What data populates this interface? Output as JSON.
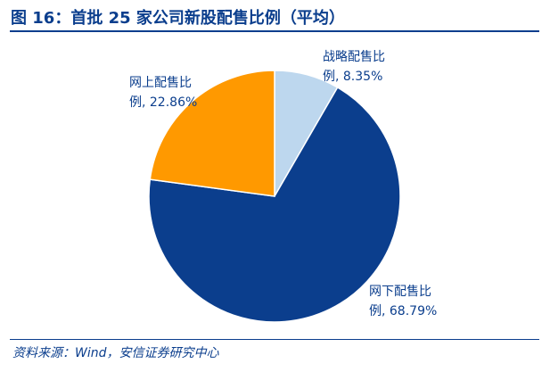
{
  "header": {
    "title": "图 16：首批 25 家公司新股配售比例（平均）"
  },
  "footer": {
    "source": "资料来源：Wind，安信证券研究中心"
  },
  "colors": {
    "title": "#0B3E8D",
    "slice_strategic": "#BDD7EE",
    "slice_offline": "#0B3E8D",
    "slice_online": "#FF9900",
    "label": "#0B3E8D"
  },
  "chart_data": {
    "type": "pie",
    "title": "首批 25 家公司新股配售比例（平均）",
    "slices": [
      {
        "label_line1": "战略配售比",
        "label_line2": "例, 8.35%",
        "value": 8.35,
        "color": "#BDD7EE"
      },
      {
        "label_line1": "网下配售比",
        "label_line2": "例, 68.79%",
        "value": 68.79,
        "color": "#0B3E8D"
      },
      {
        "label_line1": "网上配售比",
        "label_line2": "例, 22.86%",
        "value": 22.86,
        "color": "#FF9900"
      }
    ]
  }
}
